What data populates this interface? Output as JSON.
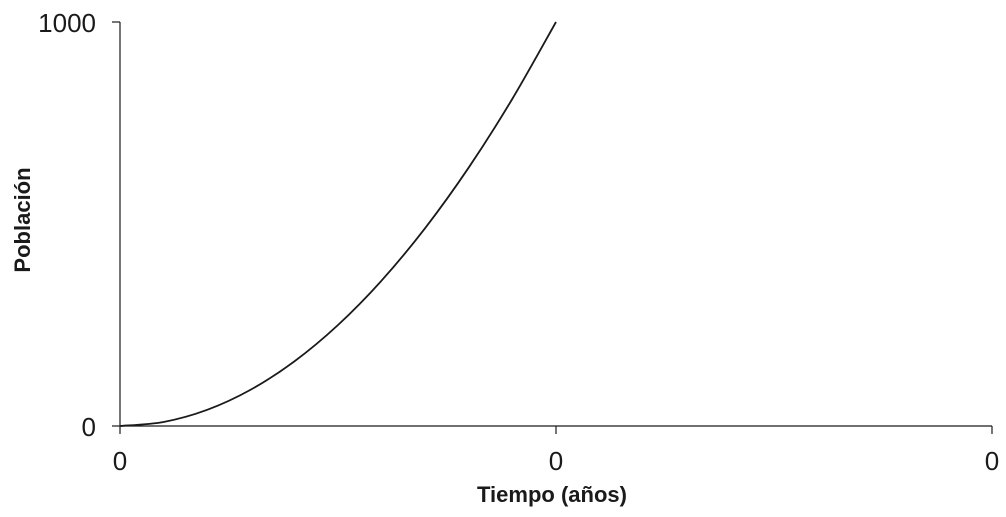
{
  "chart_data": {
    "type": "line",
    "xlabel": "Tiempo (años)",
    "ylabel": "Población",
    "x_tick_labels": [
      "0",
      "0",
      "0"
    ],
    "y_tick_labels": [
      "0",
      "1000"
    ],
    "ylim": [
      0,
      1000
    ],
    "grid": false,
    "colors": {
      "line": "#1a1a1a",
      "axis": "#1a1a1a"
    },
    "series": [
      {
        "x": [
          0,
          0.1,
          0.2,
          0.3,
          0.4,
          0.5,
          0.6,
          0.7,
          0.8,
          0.9,
          1.0
        ],
        "values": [
          0,
          10,
          40,
          90,
          160,
          250,
          360,
          490,
          640,
          810,
          1000
        ]
      }
    ]
  }
}
